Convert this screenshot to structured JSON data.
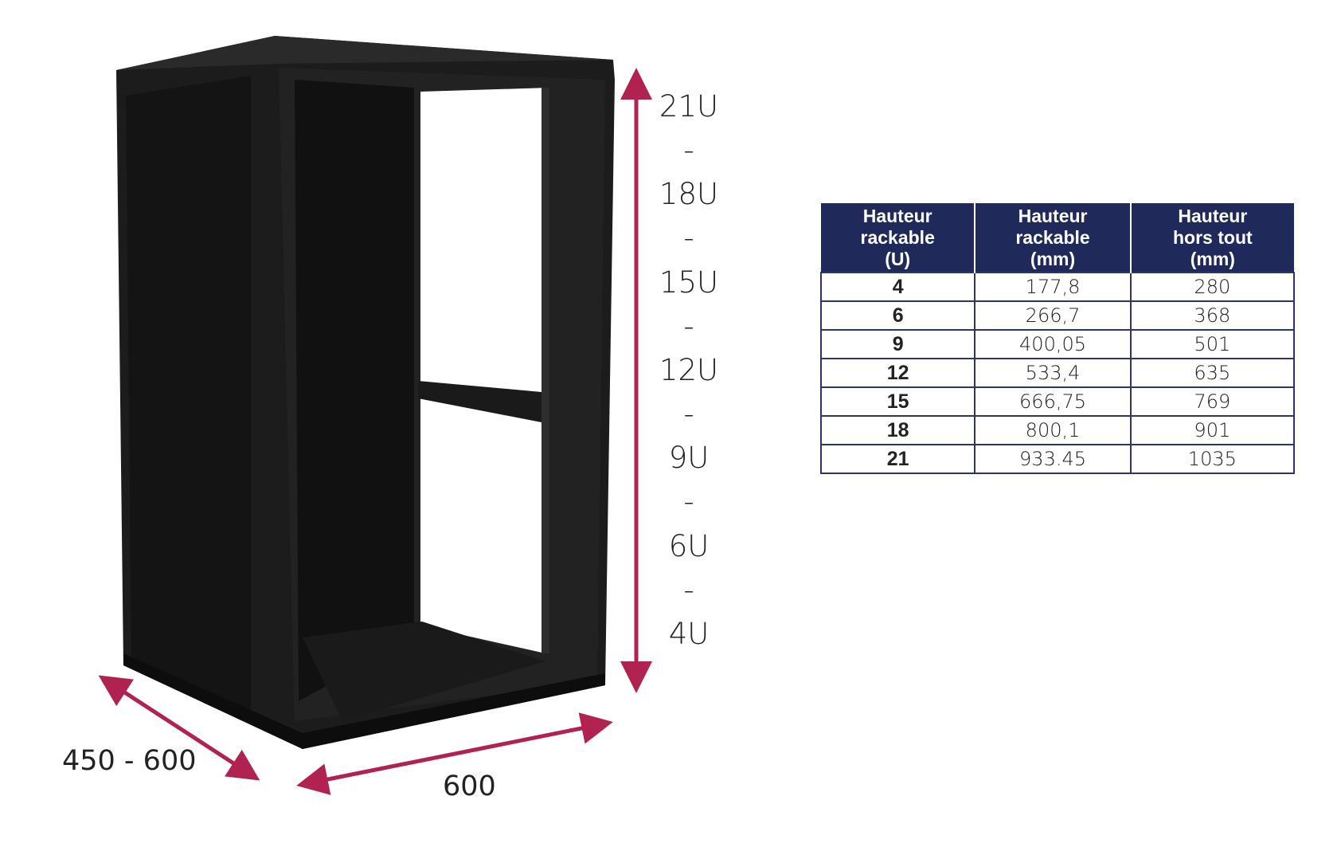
{
  "height_labels": [
    "21U",
    "-",
    "18U",
    "-",
    "15U",
    "-",
    "12U",
    "-",
    "9U",
    "-",
    "6U",
    "-",
    "4U"
  ],
  "depth_label": "450 - 600",
  "width_label": "600",
  "arrow_color": "#b0224f",
  "table": {
    "header_color": "#1f2a5a",
    "headers": [
      "Hauteur rackable (U)",
      "Hauteur rackable (mm)",
      "Hauteur hors tout (mm)"
    ],
    "header_lines": [
      [
        "Hauteur",
        "rackable",
        "(U)"
      ],
      [
        "Hauteur",
        "rackable",
        "(mm)"
      ],
      [
        "Hauteur",
        "hors tout",
        "(mm)"
      ]
    ],
    "rows": [
      [
        "4",
        "177,8",
        "280"
      ],
      [
        "6",
        "266,7",
        "368"
      ],
      [
        "9",
        "400,05",
        "501"
      ],
      [
        "12",
        "533,4",
        "635"
      ],
      [
        "15",
        "666,75",
        "769"
      ],
      [
        "18",
        "800,1",
        "901"
      ],
      [
        "21",
        "933.45",
        "1035"
      ]
    ]
  }
}
